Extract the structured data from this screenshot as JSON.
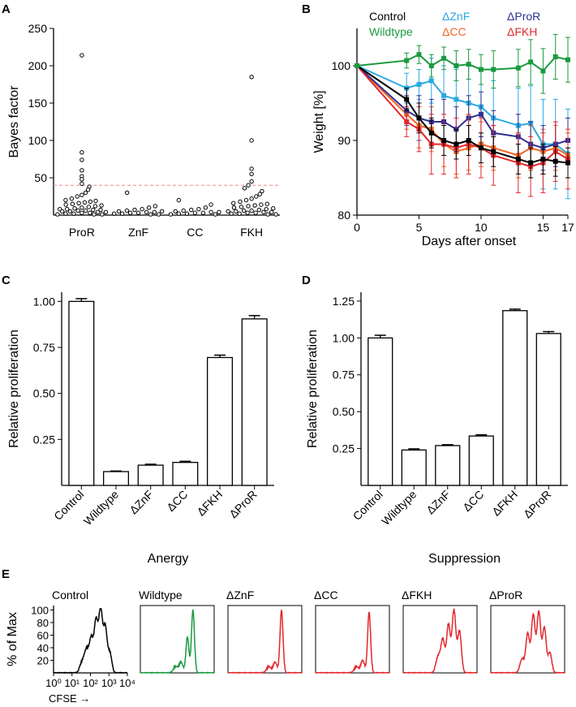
{
  "panels": {
    "A": "A",
    "B": "B",
    "C": "C",
    "D": "D",
    "E": "E"
  },
  "colors": {
    "control": "#000000",
    "wildtype": "#1a9a3e",
    "dznf": "#29a9e1",
    "dcc": "#f26522",
    "dpror": "#2e3192",
    "dfkh": "#e3262b",
    "threshold": "#e88a8a"
  },
  "chart_data": [
    {
      "panel": "A",
      "type": "scatter",
      "ylabel": "Bayes factor",
      "xlabel": "",
      "ylim": [
        0,
        250
      ],
      "yticks": [
        50,
        100,
        150,
        200,
        250
      ],
      "threshold": 40,
      "categories": [
        "ProR",
        "ZnF",
        "CC",
        "FKH"
      ],
      "series": [
        {
          "name": "ProR",
          "values": [
            214,
            84,
            74,
            60,
            52,
            48,
            42,
            38,
            34,
            30,
            27,
            25,
            22,
            20,
            19,
            18,
            17,
            16,
            15,
            14,
            13,
            12,
            11,
            10,
            9,
            8,
            8,
            7,
            7,
            6,
            6,
            5,
            5,
            4,
            4,
            3,
            3,
            2,
            2,
            1,
            1,
            1
          ]
        },
        {
          "name": "ZnF",
          "values": [
            30,
            12,
            10,
            8,
            7,
            6,
            5,
            5,
            4,
            4,
            3,
            3,
            2,
            2,
            1,
            1
          ]
        },
        {
          "name": "CC",
          "values": [
            20,
            14,
            10,
            8,
            7,
            6,
            5,
            4,
            4,
            3,
            3,
            2,
            2,
            1,
            1
          ]
        },
        {
          "name": "FKH",
          "values": [
            185,
            100,
            62,
            55,
            45,
            40,
            36,
            32,
            28,
            25,
            22,
            20,
            18,
            16,
            15,
            14,
            13,
            12,
            11,
            10,
            9,
            8,
            7,
            6,
            6,
            5,
            5,
            4,
            4,
            3,
            3,
            2,
            2,
            1,
            1
          ]
        }
      ]
    },
    {
      "panel": "B",
      "type": "line",
      "xlabel": "Days after onset",
      "ylabel": "Weight [%]",
      "xlim": [
        0,
        17
      ],
      "ylim": [
        80,
        105
      ],
      "xticks": [
        0,
        5,
        10,
        15,
        17
      ],
      "yticks": [
        80,
        90,
        100
      ],
      "x": [
        0,
        4,
        5,
        6,
        7,
        8,
        9,
        10,
        11,
        13,
        14,
        15,
        16,
        17
      ],
      "legend": [
        "Control",
        "Wildtype",
        "ΔZnF",
        "ΔCC",
        "ΔProR",
        "ΔFKH"
      ],
      "series": [
        {
          "name": "Control",
          "key": "control",
          "values": [
            100,
            95.5,
            93,
            91,
            90,
            89.5,
            90,
            89,
            88.5,
            87.5,
            87,
            87.5,
            87.2,
            87
          ],
          "err": [
            0,
            1.5,
            2,
            2,
            2,
            2,
            2,
            2,
            2,
            2,
            2,
            2,
            2,
            2
          ]
        },
        {
          "name": "Wildtype",
          "key": "wildtype",
          "values": [
            100,
            100.7,
            101.5,
            100,
            101,
            100,
            100.2,
            99.5,
            99.5,
            99.7,
            100.5,
            99.3,
            101.2,
            100.8
          ],
          "err": [
            0,
            1,
            1.2,
            1.5,
            1.5,
            2,
            2,
            2,
            2.5,
            2.5,
            3,
            3,
            3,
            3
          ]
        },
        {
          "name": "ΔZnF",
          "key": "dznf",
          "values": [
            100,
            97,
            97.5,
            98,
            96,
            95.5,
            95,
            94.5,
            93,
            92,
            92.3,
            89.5,
            89.5,
            88.2
          ],
          "err": [
            0,
            2,
            2,
            3,
            4,
            4,
            5,
            5,
            5,
            5,
            5,
            6,
            6,
            6
          ]
        },
        {
          "name": "ΔCC",
          "key": "dcc",
          "values": [
            100,
            93.5,
            92,
            91.5,
            89.5,
            88.5,
            89,
            89.5,
            89,
            88,
            89,
            88.5,
            89,
            88
          ],
          "err": [
            0,
            2,
            3,
            3,
            3,
            3,
            3,
            3,
            3,
            3,
            3,
            3,
            3,
            3
          ]
        },
        {
          "name": "ΔProR",
          "key": "dpror",
          "values": [
            100,
            94,
            93,
            92.5,
            92.5,
            91.5,
            93,
            93.5,
            91,
            90.5,
            89.5,
            89,
            89.5,
            90
          ],
          "err": [
            0,
            2,
            3,
            3,
            3,
            3,
            3,
            3,
            3,
            3,
            3,
            3,
            3,
            3
          ]
        },
        {
          "name": "ΔFKH",
          "key": "dfkh",
          "values": [
            100,
            92.5,
            91.5,
            89.5,
            89.5,
            89,
            89.5,
            89,
            88,
            87,
            86.5,
            87,
            88.5,
            87.5
          ],
          "err": [
            0,
            2,
            3,
            4,
            4,
            4,
            4,
            4,
            4,
            4,
            4,
            4,
            4,
            4
          ]
        }
      ]
    },
    {
      "panel": "C",
      "type": "bar",
      "title": "",
      "xlabel": "Anergy",
      "ylabel": "Relative proliferation",
      "ylim": [
        0,
        1.05
      ],
      "yticks": [
        "0.25",
        "0.50",
        "0.75",
        "1.00"
      ],
      "ytick_values": [
        0.25,
        0.5,
        0.75,
        1.0
      ],
      "categories": [
        "Control",
        "Wildtype",
        "ΔZnF",
        "ΔCC",
        "ΔFKH",
        "ΔProR"
      ],
      "values": [
        1.0,
        0.075,
        0.11,
        0.125,
        0.695,
        0.905
      ],
      "err": [
        0.015,
        0.003,
        0.005,
        0.006,
        0.013,
        0.018
      ]
    },
    {
      "panel": "D",
      "type": "bar",
      "title": "",
      "xlabel": "Suppression",
      "ylabel": "Relative proliferation",
      "ylim": [
        0,
        1.31
      ],
      "yticks": [
        "0.25",
        "0.50",
        "0.75",
        "1.00",
        "1.25"
      ],
      "ytick_values": [
        0.25,
        0.5,
        0.75,
        1.0,
        1.25
      ],
      "categories": [
        "Control",
        "Wildtype",
        "ΔZnF",
        "ΔCC",
        "ΔFKH",
        "ΔProR"
      ],
      "values": [
        1.0,
        0.24,
        0.27,
        0.335,
        1.185,
        1.03
      ],
      "err": [
        0.018,
        0.008,
        0.006,
        0.008,
        0.01,
        0.013
      ]
    },
    {
      "panel": "E",
      "type": "area",
      "ylabel": "% of Max",
      "yticks": [
        "20",
        "40",
        "60",
        "80",
        "100"
      ],
      "ytick_values": [
        20,
        40,
        60,
        80,
        100
      ],
      "xticks": [
        "10⁰",
        "10¹",
        "10²",
        "10³",
        "10⁴"
      ],
      "xlabel": "CFSE →",
      "histograms": [
        {
          "name": "Control",
          "key": "control",
          "peaks": [
            [
              1.55,
              15,
              0.12
            ],
            [
              1.8,
              35,
              0.12
            ],
            [
              2.05,
              50,
              0.1
            ],
            [
              2.3,
              80,
              0.1
            ],
            [
              2.55,
              98,
              0.1
            ],
            [
              2.8,
              70,
              0.1
            ],
            [
              3.05,
              30,
              0.1
            ]
          ]
        },
        {
          "name": "Wildtype",
          "key": "wildtype",
          "peaks": [
            [
              1.9,
              8,
              0.12
            ],
            [
              2.2,
              15,
              0.1
            ],
            [
              2.55,
              55,
              0.08
            ],
            [
              2.85,
              98,
              0.08
            ]
          ]
        },
        {
          "name": "ΔZnF",
          "key": "dfkh",
          "peaks": [
            [
              2.2,
              8,
              0.12
            ],
            [
              2.55,
              15,
              0.1
            ],
            [
              2.9,
              98,
              0.08
            ]
          ]
        },
        {
          "name": "ΔCC",
          "key": "dfkh",
          "peaks": [
            [
              2.2,
              8,
              0.12
            ],
            [
              2.55,
              18,
              0.1
            ],
            [
              2.9,
              95,
              0.08
            ]
          ]
        },
        {
          "name": "ΔFKH",
          "key": "dfkh",
          "peaks": [
            [
              1.9,
              25,
              0.12
            ],
            [
              2.15,
              50,
              0.1
            ],
            [
              2.45,
              75,
              0.1
            ],
            [
              2.75,
              98,
              0.1
            ],
            [
              3.05,
              65,
              0.1
            ]
          ]
        },
        {
          "name": "ΔProR",
          "key": "dfkh",
          "peaks": [
            [
              1.7,
              20,
              0.12
            ],
            [
              2.0,
              60,
              0.1
            ],
            [
              2.3,
              90,
              0.1
            ],
            [
              2.6,
              95,
              0.1
            ],
            [
              2.9,
              70,
              0.1
            ],
            [
              3.2,
              30,
              0.1
            ]
          ]
        }
      ]
    }
  ]
}
